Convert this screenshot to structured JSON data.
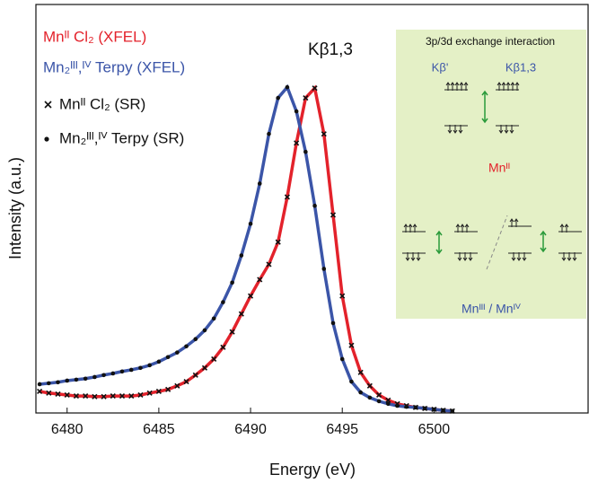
{
  "chart_data": {
    "type": "line",
    "x_label": "Energy (eV)",
    "y_label": "Intensity (a.u.)",
    "xlim": [
      6478.3,
      6508.4
    ],
    "xticks": [
      6480,
      6485,
      6490,
      6495,
      6500
    ],
    "ylim": [
      0,
      1.25
    ],
    "x": [
      6478.5,
      6479,
      6479.5,
      6480,
      6480.5,
      6481,
      6481.5,
      6482,
      6482.5,
      6483,
      6483.5,
      6484,
      6484.5,
      6485,
      6485.5,
      6486,
      6486.5,
      6487,
      6487.5,
      6488,
      6488.5,
      6489,
      6489.5,
      6490,
      6490.5,
      6491,
      6491.5,
      6492,
      6492.5,
      6493,
      6493.5,
      6494,
      6494.5,
      6495,
      6495.5,
      6496,
      6496.5,
      6497,
      6497.5,
      6498,
      6498.5,
      6499,
      6499.5,
      6500,
      6500.5,
      6501
    ],
    "series": [
      {
        "name": "Mnᴵᴵ Cl₂ (XFEL)",
        "color": "#e3222b",
        "style": "line",
        "values": [
          0.066,
          0.061,
          0.058,
          0.055,
          0.052,
          0.052,
          0.05,
          0.05,
          0.052,
          0.052,
          0.052,
          0.055,
          0.061,
          0.066,
          0.072,
          0.083,
          0.096,
          0.116,
          0.138,
          0.165,
          0.201,
          0.248,
          0.303,
          0.358,
          0.408,
          0.455,
          0.523,
          0.661,
          0.826,
          0.964,
          0.994,
          0.854,
          0.606,
          0.358,
          0.207,
          0.124,
          0.083,
          0.055,
          0.039,
          0.028,
          0.022,
          0.017,
          0.014,
          0.011,
          0.008,
          0.006
        ]
      },
      {
        "name": "Mn₂ᴵᴵᴵ,ᴵⱽ Terpy (XFEL)",
        "color": "#3b55a8",
        "style": "line",
        "values": [
          0.088,
          0.091,
          0.094,
          0.099,
          0.102,
          0.105,
          0.11,
          0.116,
          0.121,
          0.127,
          0.132,
          0.138,
          0.146,
          0.157,
          0.171,
          0.185,
          0.204,
          0.226,
          0.253,
          0.289,
          0.339,
          0.399,
          0.482,
          0.579,
          0.702,
          0.854,
          0.964,
          0.997,
          0.923,
          0.799,
          0.634,
          0.441,
          0.275,
          0.165,
          0.096,
          0.063,
          0.047,
          0.036,
          0.028,
          0.022,
          0.019,
          0.017,
          0.014,
          0.011,
          0.008,
          0.006
        ]
      },
      {
        "name": "Mnᴵᴵ Cl₂ (SR)",
        "color": "#111111",
        "style": "cross",
        "values": [
          0.066,
          0.061,
          0.058,
          0.055,
          0.052,
          0.052,
          0.05,
          0.05,
          0.052,
          0.052,
          0.052,
          0.055,
          0.061,
          0.066,
          0.072,
          0.083,
          0.096,
          0.116,
          0.138,
          0.165,
          0.201,
          0.248,
          0.303,
          0.358,
          0.408,
          0.455,
          0.523,
          0.661,
          0.826,
          0.964,
          0.994,
          0.854,
          0.606,
          0.358,
          0.207,
          0.124,
          0.083,
          0.055,
          0.039,
          0.028,
          0.022,
          0.017,
          0.014,
          0.011,
          0.008,
          0.006
        ]
      },
      {
        "name": "Mn₂ᴵᴵᴵ,ᴵⱽ Terpy (SR)",
        "color": "#111111",
        "style": "dot",
        "values": [
          0.088,
          0.091,
          0.094,
          0.099,
          0.102,
          0.105,
          0.11,
          0.116,
          0.121,
          0.127,
          0.132,
          0.138,
          0.146,
          0.157,
          0.171,
          0.185,
          0.204,
          0.226,
          0.253,
          0.289,
          0.339,
          0.399,
          0.482,
          0.579,
          0.702,
          0.854,
          0.964,
          0.997,
          0.923,
          0.799,
          0.634,
          0.441,
          0.275,
          0.165,
          0.096,
          0.063,
          0.047,
          0.036,
          0.028,
          0.022,
          0.019,
          0.017,
          0.014,
          0.011,
          0.008,
          0.006
        ]
      }
    ],
    "annotation": "Kβ1,3",
    "inset": {
      "title": "3p/3d exchange interaction",
      "label_kb_prime": "Kβ'",
      "label_kb13": "Kβ1,3",
      "label_mn2": "Mnᴵᴵ",
      "label_mn34": "Mnᴵᴵᴵ / Mnᴵⱽ",
      "color": "#e4f0c6"
    }
  }
}
